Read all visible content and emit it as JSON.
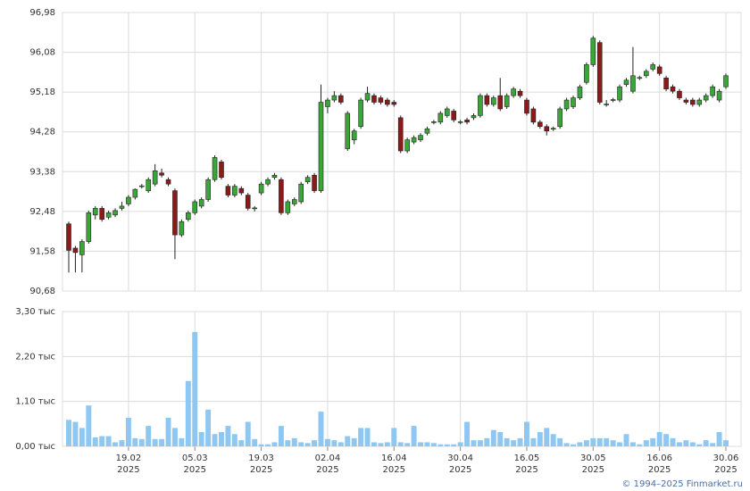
{
  "chart_data": [
    {
      "type": "candlestick",
      "ylim": [
        90.68,
        96.98
      ],
      "yticks": [
        {
          "value": 90.68,
          "label": "90,68"
        },
        {
          "value": 91.58,
          "label": "91,58"
        },
        {
          "value": 92.48,
          "label": "92,48"
        },
        {
          "value": 93.38,
          "label": "93,38"
        },
        {
          "value": 94.28,
          "label": "94,28"
        },
        {
          "value": 95.18,
          "label": "95,18"
        },
        {
          "value": 96.08,
          "label": "96,08"
        },
        {
          "value": 96.98,
          "label": "96,98"
        }
      ],
      "grid": true,
      "up_color": "#3aa63a",
      "down_color": "#8b1a1a",
      "categories": [
        null,
        null,
        null,
        null,
        null,
        null,
        null,
        null,
        null,
        {
          "date": "19.02",
          "year": "2025"
        },
        null,
        null,
        null,
        null,
        null,
        null,
        null,
        null,
        null,
        {
          "date": "05.03",
          "year": "2025"
        },
        null,
        null,
        null,
        null,
        null,
        null,
        null,
        null,
        null,
        {
          "date": "19.03",
          "year": "2025"
        },
        null,
        null,
        null,
        null,
        null,
        null,
        null,
        null,
        null,
        {
          "date": "02.04",
          "year": "2025"
        },
        null,
        null,
        null,
        null,
        null,
        null,
        null,
        null,
        null,
        {
          "date": "16.04",
          "year": "2025"
        },
        null,
        null,
        null,
        null,
        null,
        null,
        null,
        null,
        null,
        {
          "date": "30.04",
          "year": "2025"
        },
        null,
        null,
        null,
        null,
        null,
        null,
        null,
        null,
        null,
        {
          "date": "16.05",
          "year": "2025"
        },
        null,
        null,
        null,
        null,
        null,
        null,
        null,
        null,
        null,
        {
          "date": "30.05",
          "year": "2025"
        },
        null,
        null,
        null,
        null,
        null,
        null,
        null,
        null,
        null,
        {
          "date": "16.06",
          "year": "2025"
        },
        null,
        null,
        null,
        null,
        null,
        null,
        null,
        null,
        null,
        {
          "date": "30.06",
          "year": "2025"
        }
      ],
      "values": [
        [
          92.2,
          92.25,
          91.1,
          91.6
        ],
        [
          91.65,
          91.7,
          91.1,
          91.55
        ],
        [
          91.5,
          91.85,
          91.1,
          91.8
        ],
        [
          91.8,
          92.5,
          91.75,
          92.45
        ],
        [
          92.4,
          92.6,
          92.3,
          92.55
        ],
        [
          92.55,
          92.6,
          92.25,
          92.3
        ],
        [
          92.35,
          92.5,
          92.3,
          92.45
        ],
        [
          92.4,
          92.55,
          92.35,
          92.5
        ],
        [
          92.55,
          92.7,
          92.5,
          92.6
        ],
        [
          92.65,
          92.85,
          92.6,
          92.8
        ],
        [
          92.8,
          93.0,
          92.75,
          92.98
        ],
        [
          93.05,
          93.1,
          93.0,
          93.06
        ],
        [
          92.95,
          93.25,
          92.9,
          93.2
        ],
        [
          93.1,
          93.55,
          93.05,
          93.4
        ],
        [
          93.35,
          93.45,
          93.25,
          93.3
        ],
        [
          93.2,
          93.25,
          93.05,
          93.1
        ],
        [
          92.95,
          93.0,
          91.4,
          91.95
        ],
        [
          91.95,
          92.3,
          91.9,
          92.25
        ],
        [
          92.3,
          92.5,
          92.25,
          92.45
        ],
        [
          92.45,
          92.75,
          92.4,
          92.7
        ],
        [
          92.6,
          92.8,
          92.55,
          92.75
        ],
        [
          92.75,
          93.25,
          92.7,
          93.2
        ],
        [
          93.2,
          93.75,
          93.15,
          93.7
        ],
        [
          93.6,
          93.65,
          93.2,
          93.25
        ],
        [
          93.05,
          93.1,
          92.8,
          92.85
        ],
        [
          92.85,
          93.1,
          92.8,
          93.05
        ],
        [
          93.0,
          93.05,
          92.85,
          92.9
        ],
        [
          92.85,
          92.9,
          92.5,
          92.55
        ],
        [
          92.55,
          92.6,
          92.48,
          92.56
        ],
        [
          92.9,
          93.15,
          92.85,
          93.1
        ],
        [
          93.1,
          93.25,
          93.05,
          93.2
        ],
        [
          93.25,
          93.35,
          93.2,
          93.3
        ],
        [
          93.2,
          93.25,
          92.4,
          92.45
        ],
        [
          92.45,
          92.75,
          92.4,
          92.7
        ],
        [
          92.65,
          92.8,
          92.6,
          92.75
        ],
        [
          92.7,
          93.15,
          92.65,
          93.1
        ],
        [
          93.15,
          93.3,
          93.1,
          93.25
        ],
        [
          93.3,
          93.35,
          92.9,
          92.95
        ],
        [
          92.95,
          95.35,
          92.9,
          94.95
        ],
        [
          94.85,
          95.05,
          94.7,
          95.0
        ],
        [
          95.0,
          95.2,
          94.95,
          95.1
        ],
        [
          95.1,
          95.15,
          94.9,
          94.95
        ],
        [
          93.9,
          94.75,
          93.85,
          94.7
        ],
        [
          94.1,
          94.35,
          94.0,
          94.3
        ],
        [
          94.4,
          95.05,
          94.35,
          95.0
        ],
        [
          95.0,
          95.3,
          94.95,
          95.15
        ],
        [
          95.1,
          95.15,
          94.9,
          94.95
        ],
        [
          95.05,
          95.1,
          94.9,
          94.95
        ],
        [
          95.0,
          95.05,
          94.85,
          94.9
        ],
        [
          94.95,
          95.0,
          94.85,
          94.9
        ],
        [
          94.6,
          94.65,
          93.8,
          93.85
        ],
        [
          93.85,
          94.15,
          93.8,
          94.1
        ],
        [
          94.05,
          94.2,
          94.0,
          94.15
        ],
        [
          94.1,
          94.25,
          94.05,
          94.2
        ],
        [
          94.25,
          94.4,
          94.2,
          94.35
        ],
        [
          94.5,
          94.55,
          94.45,
          94.51
        ],
        [
          94.5,
          94.75,
          94.45,
          94.7
        ],
        [
          94.65,
          94.85,
          94.6,
          94.8
        ],
        [
          94.75,
          94.8,
          94.5,
          94.55
        ],
        [
          94.5,
          94.55,
          94.45,
          94.51
        ],
        [
          94.55,
          94.6,
          94.45,
          94.5
        ],
        [
          94.6,
          94.7,
          94.55,
          94.65
        ],
        [
          94.65,
          95.15,
          94.6,
          95.1
        ],
        [
          95.1,
          95.15,
          94.85,
          94.9
        ],
        [
          94.9,
          95.1,
          94.85,
          95.05
        ],
        [
          95.1,
          95.5,
          94.75,
          94.8
        ],
        [
          94.85,
          95.15,
          94.8,
          95.1
        ],
        [
          95.1,
          95.3,
          95.05,
          95.25
        ],
        [
          95.2,
          95.25,
          95.05,
          95.1
        ],
        [
          95.0,
          95.05,
          94.65,
          94.7
        ],
        [
          94.8,
          94.85,
          94.45,
          94.5
        ],
        [
          94.5,
          94.55,
          94.35,
          94.4
        ],
        [
          94.4,
          94.45,
          94.2,
          94.3
        ],
        [
          94.35,
          94.4,
          94.3,
          94.36
        ],
        [
          94.4,
          94.85,
          94.35,
          94.8
        ],
        [
          94.8,
          95.05,
          94.75,
          95.0
        ],
        [
          94.85,
          95.1,
          94.8,
          95.05
        ],
        [
          95.05,
          95.35,
          95.0,
          95.3
        ],
        [
          95.4,
          95.85,
          95.35,
          95.8
        ],
        [
          95.8,
          96.45,
          95.75,
          96.4
        ],
        [
          96.3,
          96.35,
          94.9,
          94.95
        ],
        [
          94.9,
          95.0,
          94.85,
          94.91
        ],
        [
          95.0,
          95.05,
          94.95,
          95.01
        ],
        [
          95.0,
          95.35,
          94.95,
          95.3
        ],
        [
          95.35,
          95.5,
          95.3,
          95.45
        ],
        [
          95.2,
          96.2,
          95.15,
          95.55
        ],
        [
          95.5,
          95.55,
          95.45,
          95.51
        ],
        [
          95.55,
          95.7,
          95.5,
          95.65
        ],
        [
          95.7,
          95.85,
          95.65,
          95.8
        ],
        [
          95.75,
          95.8,
          95.55,
          95.6
        ],
        [
          95.5,
          95.55,
          95.2,
          95.25
        ],
        [
          95.3,
          95.35,
          95.15,
          95.2
        ],
        [
          95.2,
          95.25,
          95.0,
          95.05
        ],
        [
          95.0,
          95.05,
          94.9,
          94.95
        ],
        [
          95.0,
          95.05,
          94.85,
          94.9
        ],
        [
          94.9,
          95.05,
          94.85,
          95.0
        ],
        [
          95.0,
          95.15,
          94.95,
          95.1
        ],
        [
          95.1,
          95.35,
          95.05,
          95.3
        ],
        [
          95.0,
          95.25,
          94.95,
          95.2
        ],
        [
          95.3,
          95.6,
          95.25,
          95.55
        ]
      ]
    },
    {
      "type": "bar",
      "ylim": [
        0,
        3.3
      ],
      "yticks": [
        {
          "value": 0,
          "label": "0,00 тыс"
        },
        {
          "value": 1.1,
          "label": "1,10 тыс"
        },
        {
          "value": 2.2,
          "label": "2,20 тыс"
        },
        {
          "value": 3.3,
          "label": "3,30 тыс"
        }
      ],
      "grid": true,
      "color": "#8ec8f2",
      "values": [
        0.65,
        0.6,
        0.45,
        1.0,
        0.22,
        0.25,
        0.25,
        0.1,
        0.15,
        0.7,
        0.2,
        0.18,
        0.5,
        0.18,
        0.18,
        0.7,
        0.45,
        0.2,
        1.6,
        2.8,
        0.35,
        0.9,
        0.3,
        0.35,
        0.5,
        0.3,
        0.15,
        0.6,
        0.18,
        0.05,
        0.05,
        0.1,
        0.5,
        0.15,
        0.2,
        0.1,
        0.08,
        0.15,
        0.85,
        0.18,
        0.15,
        0.1,
        0.25,
        0.2,
        0.45,
        0.45,
        0.1,
        0.08,
        0.1,
        0.45,
        0.1,
        0.08,
        0.5,
        0.1,
        0.1,
        0.08,
        0.05,
        0.05,
        0.05,
        0.1,
        0.6,
        0.15,
        0.15,
        0.2,
        0.4,
        0.35,
        0.2,
        0.15,
        0.2,
        0.6,
        0.2,
        0.35,
        0.45,
        0.3,
        0.2,
        0.08,
        0.05,
        0.1,
        0.15,
        0.2,
        0.2,
        0.2,
        0.15,
        0.1,
        0.3,
        0.1,
        0.05,
        0.15,
        0.2,
        0.35,
        0.3,
        0.2,
        0.1,
        0.15,
        0.1,
        0.05,
        0.15,
        0.08,
        0.35,
        0.15
      ]
    }
  ],
  "footer": "© 1994–2025 Finmarket.ru"
}
